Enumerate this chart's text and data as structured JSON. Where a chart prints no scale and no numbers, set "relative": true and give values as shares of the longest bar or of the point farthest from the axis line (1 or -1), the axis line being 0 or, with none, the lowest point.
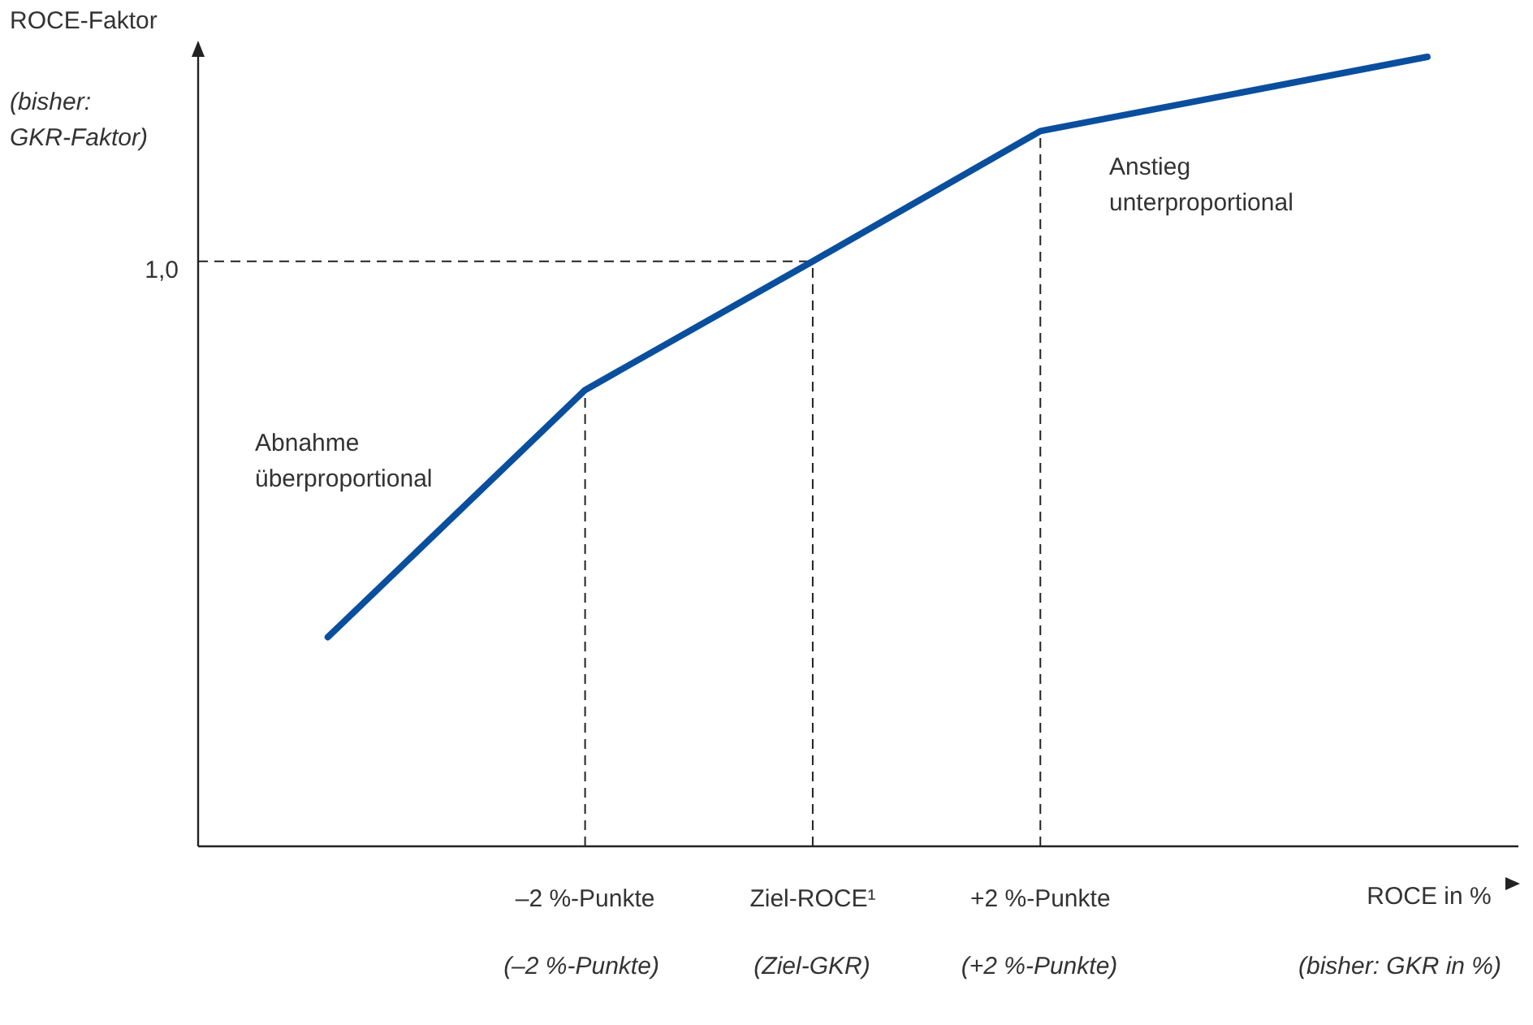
{
  "chart_data": {
    "type": "line",
    "relative": true,
    "xlabel": "ROCE in %",
    "ylabel": "ROCE-Faktor",
    "x": [
      -4.26,
      -2,
      0,
      2,
      5.4
    ],
    "series": [
      {
        "color": "#0a4f9e",
        "values": [
          0.265,
          0.578,
          0.741,
          0.906,
          1
        ]
      }
    ],
    "xlim": [
      -5.4,
      6.2
    ],
    "xticks": [
      {
        "value": -2,
        "label": "–2 %-Punkte"
      },
      {
        "value": 0,
        "label": "Ziel-ROCE¹"
      },
      {
        "value": 2,
        "label": "+2 %-Punkte"
      }
    ],
    "ref_lines": [
      {
        "axis": "y",
        "value": 0.741,
        "line_style": "dashed"
      },
      {
        "axis": "x",
        "value": -2,
        "line_style": "dashed"
      },
      {
        "axis": "x",
        "value": 0,
        "line_style": "dashed"
      },
      {
        "axis": "x",
        "value": 2,
        "line_style": "dashed"
      }
    ],
    "annotations": [
      "(bisher:\nGKR-Faktor)",
      "(bisher: GKR in %)",
      "(–2 %-Punkte)",
      "(Ziel-GKR)",
      "(+2 %-Punkte)",
      "Abnahme\nüberproportional",
      "Anstieg\nunterproportional",
      "1,0"
    ],
    "grid": false,
    "legend": false,
    "marker": "none",
    "line_style": "solid"
  }
}
